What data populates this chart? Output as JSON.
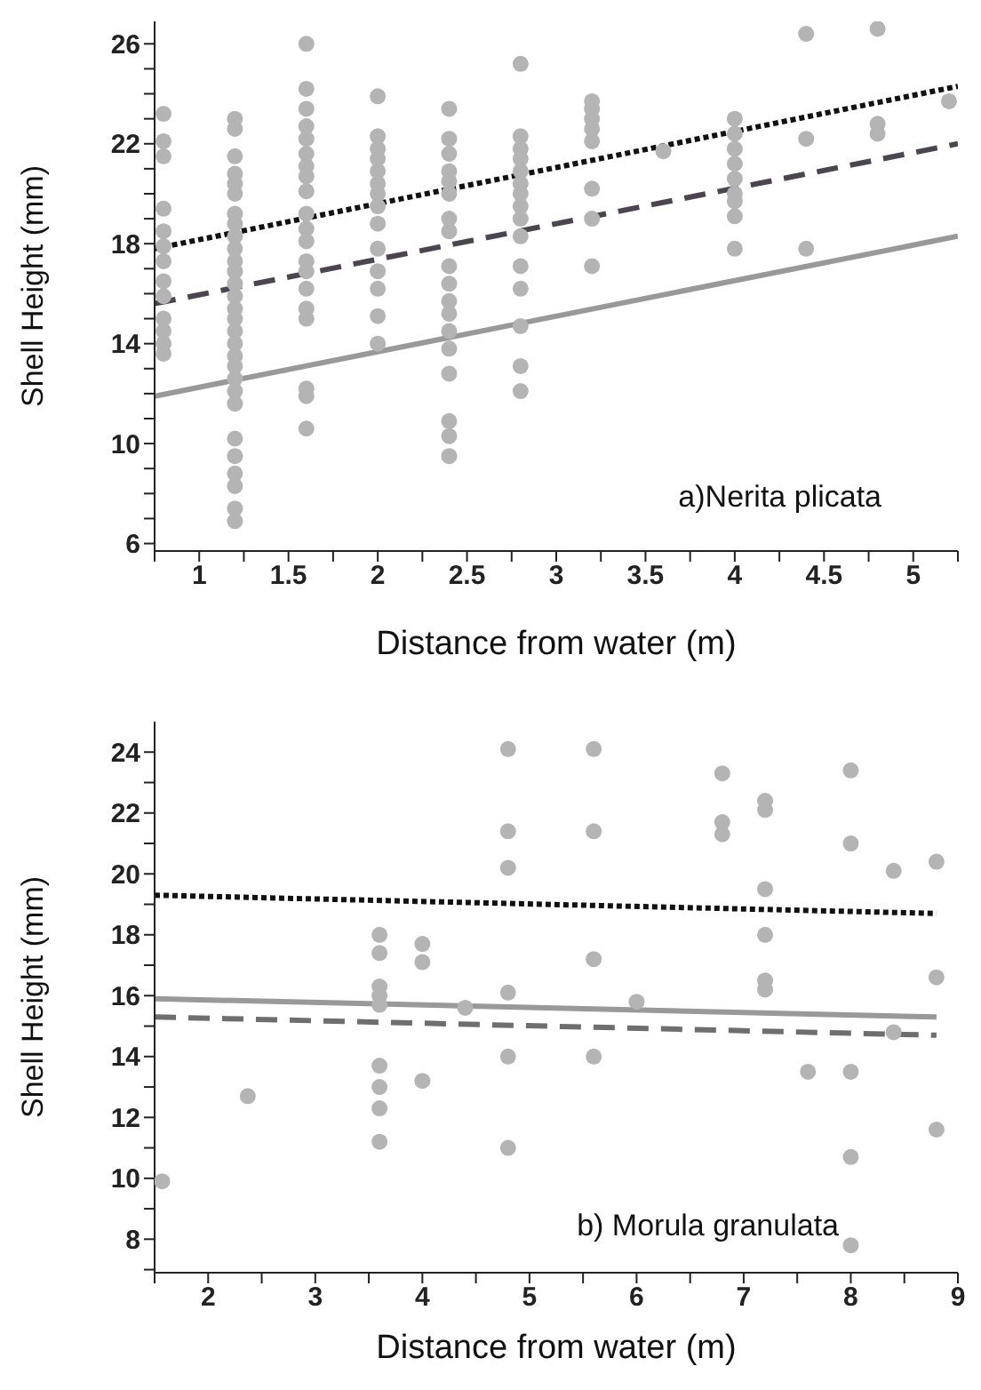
{
  "chart_data": [
    {
      "type": "scatter",
      "xlabel": "Distance from water (m)",
      "ylabel": "Shell Height (mm)",
      "annotations": [
        "a)Nerita plicata"
      ],
      "marker": "circle",
      "xlim": [
        0.75,
        5.25
      ],
      "ylim": [
        5.7,
        26.9
      ],
      "xticks": [
        {
          "value": 0.75,
          "label": null
        },
        1,
        {
          "value": 1.25,
          "label": null
        },
        1.5,
        {
          "value": 1.75,
          "label": null
        },
        2,
        {
          "value": 2.25,
          "label": null
        },
        2.5,
        {
          "value": 2.75,
          "label": null
        },
        3,
        {
          "value": 3.25,
          "label": null
        },
        3.5,
        {
          "value": 3.75,
          "label": null
        },
        4,
        {
          "value": 4.25,
          "label": null
        },
        4.5,
        {
          "value": 4.75,
          "label": null
        },
        5,
        {
          "value": 5.25,
          "label": null
        }
      ],
      "yticks": [
        6,
        {
          "value": 7,
          "label": null
        },
        {
          "value": 8,
          "label": null
        },
        {
          "value": 9,
          "label": null
        },
        10,
        {
          "value": 11,
          "label": null
        },
        {
          "value": 12,
          "label": null
        },
        {
          "value": 13,
          "label": null
        },
        14,
        {
          "value": 15,
          "label": null
        },
        {
          "value": 16,
          "label": null
        },
        {
          "value": 17,
          "label": null
        },
        18,
        {
          "value": 19,
          "label": null
        },
        {
          "value": 20,
          "label": null
        },
        {
          "value": 21,
          "label": null
        },
        22,
        {
          "value": 23,
          "label": null
        },
        {
          "value": 24,
          "label": null
        },
        {
          "value": 25,
          "label": null
        },
        26
      ],
      "series": [
        {
          "type": "scatter",
          "color": "#b4b4b4",
          "x": [
            0.8,
            0.8,
            0.8,
            0.8,
            0.8,
            0.8,
            0.8,
            0.8,
            0.8,
            0.8,
            0.8,
            0.8,
            0.8,
            1.2,
            1.2,
            1.2,
            1.2,
            1.2,
            1.2,
            1.2,
            1.2,
            1.2,
            1.2,
            1.2,
            1.2,
            1.2,
            1.2,
            1.2,
            1.2,
            1.2,
            1.2,
            1.2,
            1.2,
            1.2,
            1.2,
            1.2,
            1.2,
            1.2,
            1.2,
            1.2,
            1.2,
            1.2,
            1.6,
            1.6,
            1.6,
            1.6,
            1.6,
            1.6,
            1.6,
            1.6,
            1.6,
            1.6,
            1.6,
            1.6,
            1.6,
            1.6,
            1.6,
            1.6,
            1.6,
            1.6,
            1.6,
            1.6,
            2.0,
            2.0,
            2.0,
            2.0,
            2.0,
            2.0,
            2.0,
            2.0,
            2.0,
            2.0,
            2.0,
            2.0,
            2.0,
            2.0,
            2.4,
            2.4,
            2.4,
            2.4,
            2.4,
            2.4,
            2.4,
            2.4,
            2.4,
            2.4,
            2.4,
            2.4,
            2.4,
            2.4,
            2.4,
            2.4,
            2.4,
            2.4,
            2.8,
            2.8,
            2.8,
            2.8,
            2.8,
            2.8,
            2.8,
            2.8,
            2.8,
            2.8,
            2.8,
            2.8,
            2.8,
            2.8,
            2.8,
            3.2,
            3.2,
            3.2,
            3.2,
            3.2,
            3.2,
            3.2,
            3.2,
            3.6,
            4.0,
            4.0,
            4.0,
            4.0,
            4.0,
            4.0,
            4.0,
            4.0,
            4.0,
            4.4,
            4.4,
            4.4,
            4.8,
            4.8,
            4.8,
            5.2
          ],
          "values": [
            23.2,
            22.1,
            21.5,
            19.4,
            18.5,
            17.9,
            17.3,
            16.5,
            15.9,
            15.0,
            14.5,
            14.0,
            13.6,
            23.0,
            22.6,
            21.5,
            20.8,
            20.4,
            20.0,
            19.2,
            18.8,
            18.3,
            17.8,
            17.3,
            16.9,
            16.4,
            15.9,
            15.4,
            15.0,
            14.5,
            14.0,
            13.5,
            13.1,
            12.6,
            12.1,
            11.6,
            10.2,
            9.5,
            8.8,
            8.3,
            7.4,
            6.9,
            26.0,
            24.2,
            23.4,
            22.7,
            22.2,
            21.6,
            21.1,
            20.7,
            20.1,
            19.2,
            18.6,
            18.1,
            17.3,
            16.9,
            16.2,
            15.4,
            15.0,
            12.2,
            11.9,
            10.6,
            23.9,
            22.3,
            21.8,
            21.4,
            20.9,
            20.4,
            20.0,
            19.5,
            18.8,
            17.8,
            16.9,
            16.2,
            15.1,
            14.0,
            23.4,
            22.2,
            21.6,
            20.9,
            20.5,
            20.0,
            19.0,
            18.5,
            17.1,
            16.4,
            15.7,
            15.2,
            14.5,
            13.8,
            12.8,
            10.9,
            10.3,
            9.5,
            25.2,
            22.3,
            21.8,
            21.4,
            20.9,
            20.4,
            20.0,
            19.5,
            19.0,
            18.3,
            17.1,
            16.2,
            14.7,
            13.1,
            12.1,
            23.7,
            23.4,
            23.0,
            22.6,
            22.1,
            20.2,
            19.0,
            17.1,
            21.7,
            23.0,
            22.4,
            21.8,
            21.2,
            20.6,
            20.0,
            19.7,
            19.1,
            17.8,
            26.4,
            22.2,
            17.8,
            26.6,
            22.8,
            22.4,
            23.7
          ]
        },
        {
          "type": "line",
          "color": "#999999",
          "line_style": "solid",
          "marker": "none",
          "x": [
            0.75,
            5.25
          ],
          "values": [
            11.9,
            18.3
          ]
        },
        {
          "type": "line",
          "color": "#4d4452",
          "line_style": "dashed",
          "marker": "none",
          "x": [
            0.75,
            5.25
          ],
          "values": [
            15.6,
            22.0
          ]
        },
        {
          "type": "line",
          "color": "#111111",
          "line_style": "dotted",
          "marker": "none",
          "x": [
            0.75,
            5.25
          ],
          "values": [
            17.8,
            24.3
          ]
        }
      ]
    },
    {
      "type": "scatter",
      "xlabel": "Distance from water (m)",
      "ylabel": "Shell Height (mm)",
      "annotations": [
        "b) Morula granulata"
      ],
      "marker": "circle",
      "xlim": [
        1.5,
        9
      ],
      "ylim": [
        6.9,
        25
      ],
      "xticks": [
        {
          "value": 1.5,
          "label": null
        },
        2,
        {
          "value": 2.5,
          "label": null
        },
        3,
        {
          "value": 3.5,
          "label": null
        },
        4,
        {
          "value": 4.5,
          "label": null
        },
        5,
        {
          "value": 5.5,
          "label": null
        },
        6,
        {
          "value": 6.5,
          "label": null
        },
        7,
        {
          "value": 7.5,
          "label": null
        },
        8,
        {
          "value": 8.5,
          "label": null
        },
        9
      ],
      "yticks": [
        {
          "value": 7,
          "label": null
        },
        8,
        {
          "value": 9,
          "label": null
        },
        10,
        {
          "value": 11,
          "label": null
        },
        12,
        {
          "value": 13,
          "label": null
        },
        14,
        {
          "value": 15,
          "label": null
        },
        16,
        {
          "value": 17,
          "label": null
        },
        18,
        {
          "value": 19,
          "label": null
        },
        20,
        {
          "value": 21,
          "label": null
        },
        22,
        {
          "value": 23,
          "label": null
        },
        24
      ],
      "series": [
        {
          "type": "scatter",
          "color": "#b4b4b4",
          "x": [
            1.57,
            2.37,
            3.6,
            3.6,
            3.6,
            3.6,
            3.6,
            3.6,
            3.6,
            3.6,
            3.6,
            4.0,
            4.0,
            4.0,
            4.4,
            4.8,
            4.8,
            4.8,
            4.8,
            4.8,
            4.8,
            5.6,
            5.6,
            5.6,
            5.6,
            6.0,
            6.8,
            6.8,
            6.8,
            7.2,
            7.2,
            7.2,
            7.2,
            7.2,
            7.2,
            7.6,
            8.0,
            8.0,
            8.0,
            8.0,
            8.0,
            8.4,
            8.4,
            8.8,
            8.8,
            8.8
          ],
          "values": [
            9.9,
            12.7,
            18.0,
            17.4,
            16.3,
            16.0,
            15.7,
            13.7,
            13.0,
            12.3,
            11.2,
            17.7,
            17.1,
            13.2,
            15.6,
            24.1,
            21.4,
            20.2,
            16.1,
            14.0,
            11.0,
            24.1,
            21.4,
            17.2,
            14.0,
            15.8,
            23.3,
            21.7,
            21.3,
            22.4,
            22.1,
            19.5,
            18.0,
            16.5,
            16.2,
            13.5,
            23.4,
            21.0,
            13.5,
            10.7,
            7.8,
            20.1,
            14.8,
            20.4,
            16.6,
            11.6
          ]
        },
        {
          "type": "line",
          "color": "#999999",
          "line_style": "solid",
          "marker": "none",
          "x": [
            1.5,
            8.8
          ],
          "values": [
            15.9,
            15.3
          ]
        },
        {
          "type": "line",
          "color": "#6e6e6e",
          "line_style": "dashed",
          "marker": "none",
          "x": [
            1.5,
            8.8
          ],
          "values": [
            15.3,
            14.7
          ]
        },
        {
          "type": "line",
          "color": "#111111",
          "line_style": "dotted",
          "marker": "none",
          "x": [
            1.5,
            8.8
          ],
          "values": [
            19.3,
            18.7
          ]
        }
      ]
    }
  ]
}
